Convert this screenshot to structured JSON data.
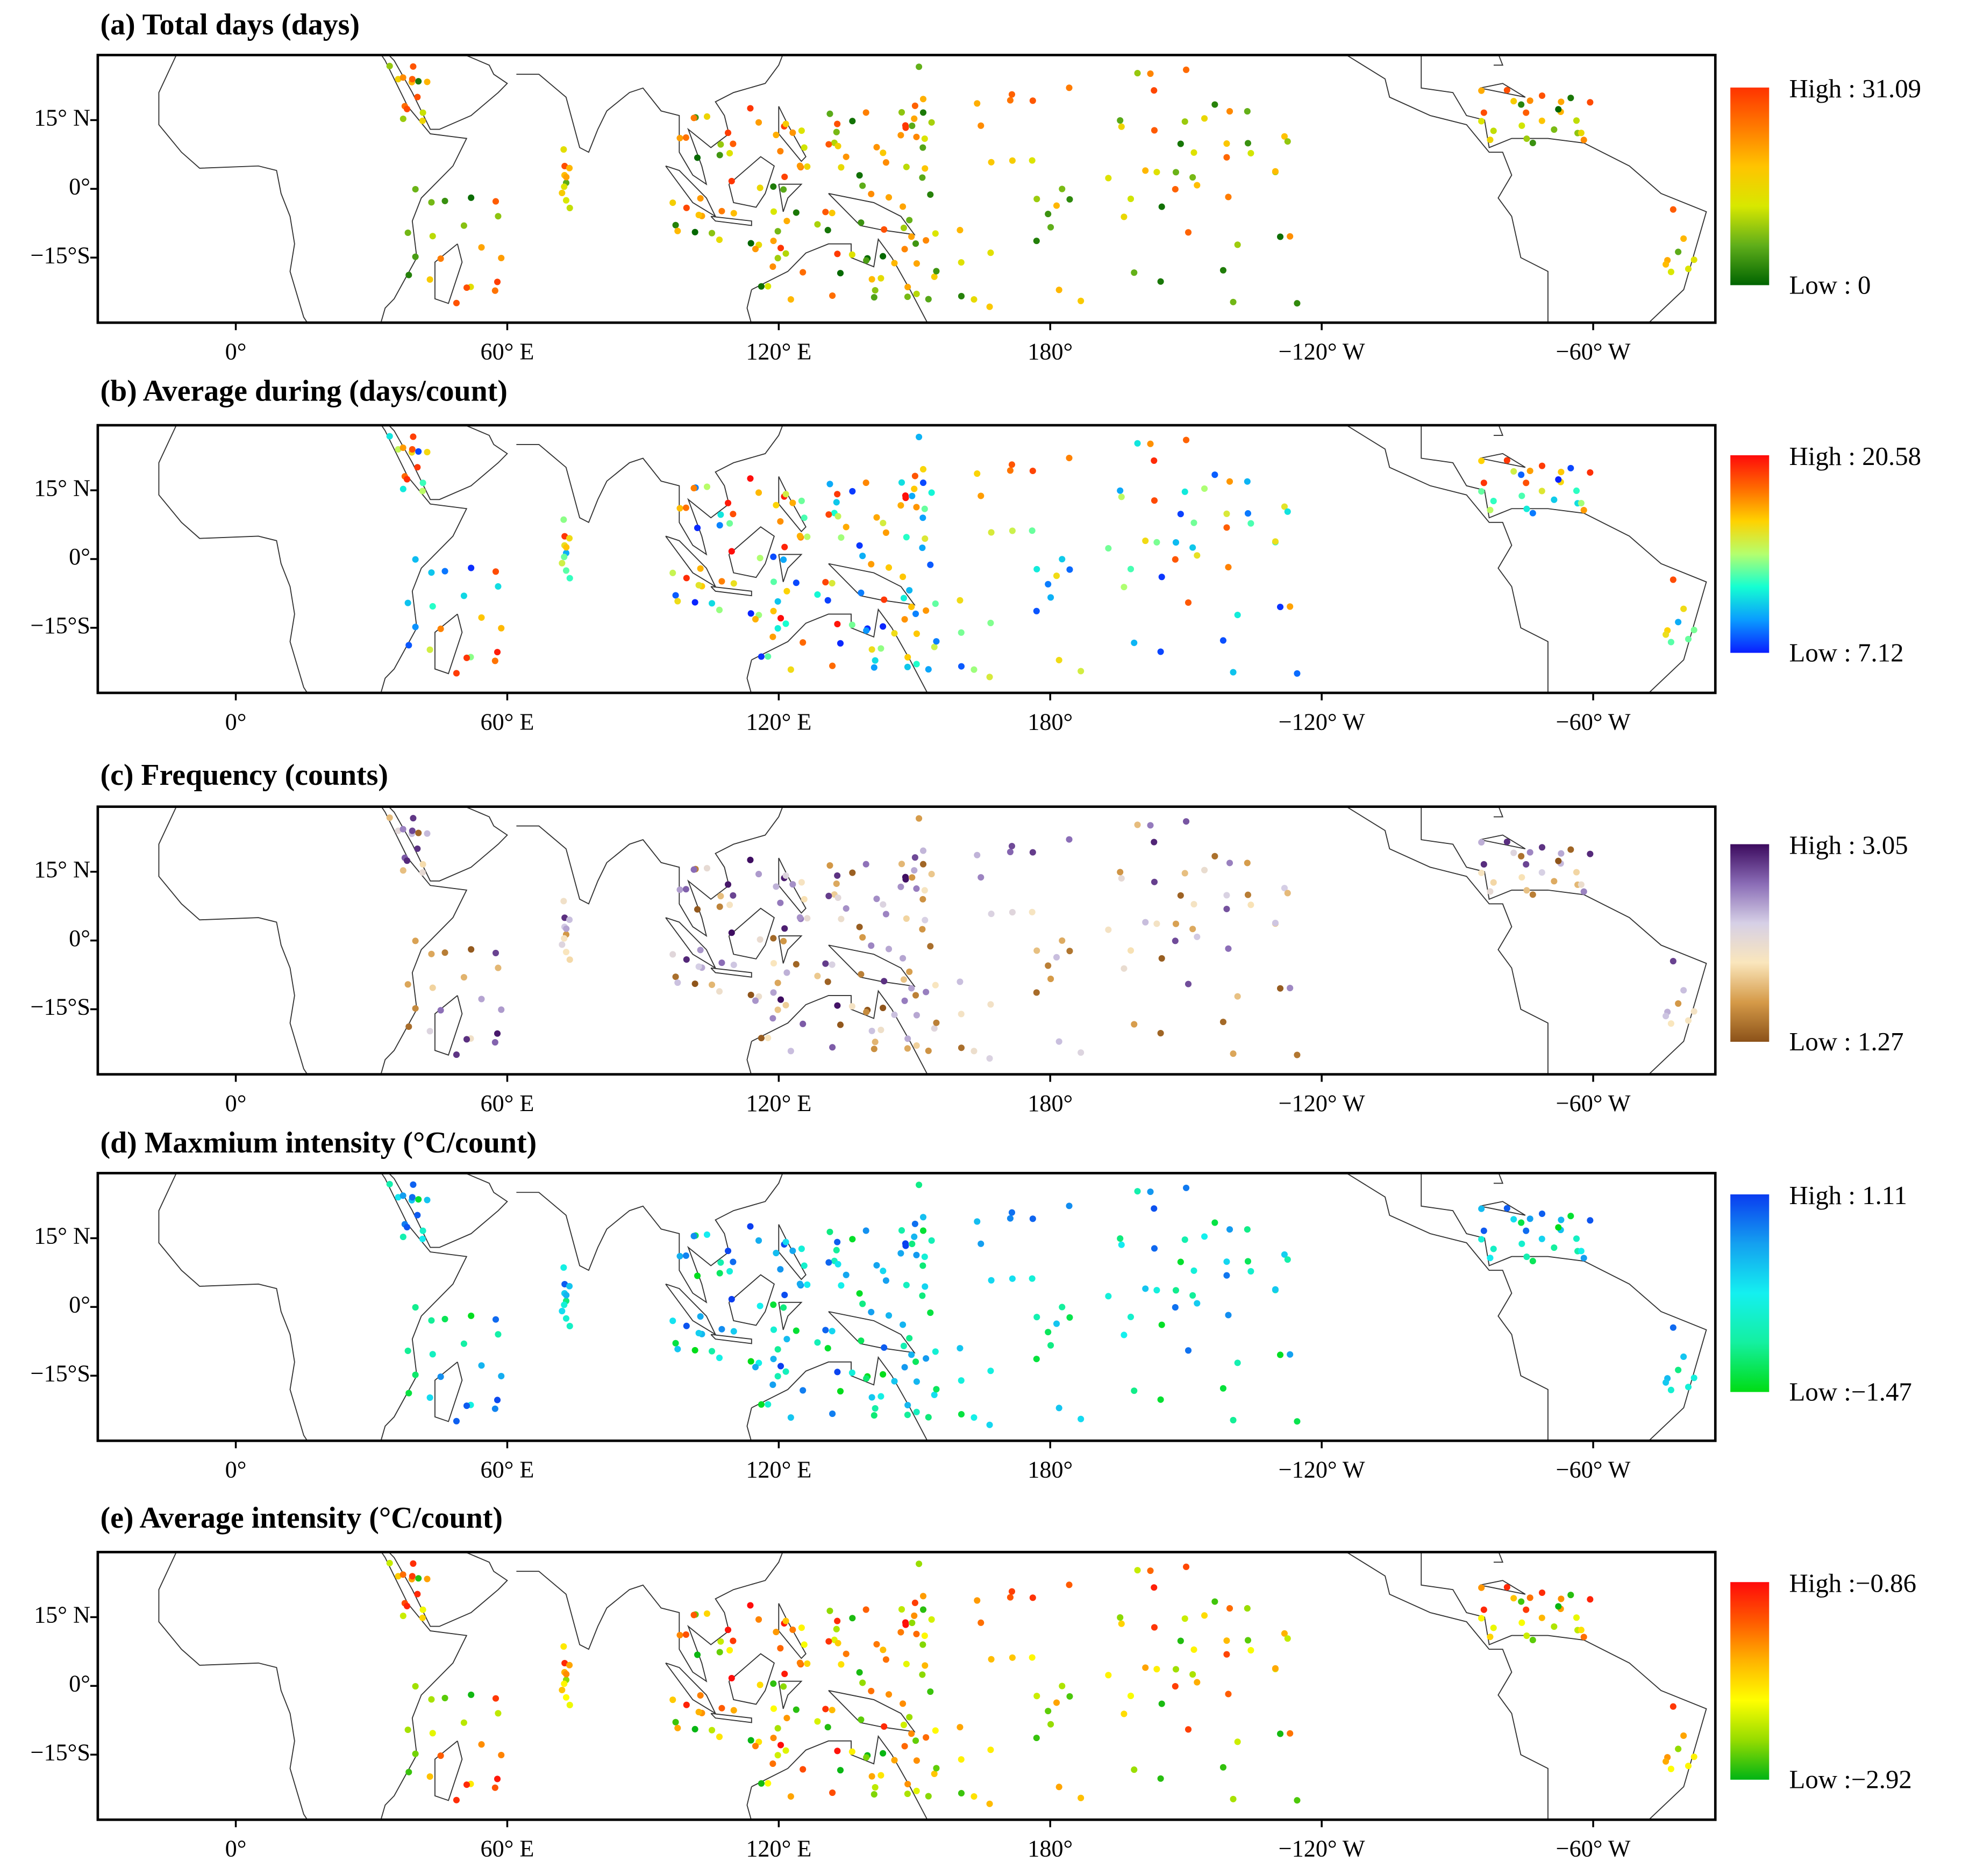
{
  "panels": [
    {
      "title": "(a) Total days (days)",
      "high_label": "High : 31.09",
      "low_label": "Low : 0",
      "colors": [
        "#006400",
        "#5fae1a",
        "#d8e800",
        "#ffc400",
        "#ff7a00",
        "#ff3300"
      ]
    },
    {
      "title": "(b) Average during (days/count)",
      "high_label": "High : 20.58",
      "low_label": "Low : 7.12",
      "colors": [
        "#0a1eff",
        "#0a9cff",
        "#14ffd2",
        "#b4ff6e",
        "#ffd200",
        "#ff6a00",
        "#ff0a0a"
      ]
    },
    {
      "title": "(c) Frequency (counts)",
      "high_label": "High : 3.05",
      "low_label": "Low : 1.27",
      "colors": [
        "#8c5219",
        "#d59a48",
        "#fae6bc",
        "#d6d0e6",
        "#8a6cb6",
        "#3c0a5e"
      ]
    },
    {
      "title": "(d) Maxmium intensity (°C/count)",
      "high_label": "High : 1.11",
      "low_label": "Low :−1.47",
      "colors": [
        "#00dc14",
        "#14f0a0",
        "#14f0f0",
        "#14a0f0",
        "#0a3cf0"
      ]
    },
    {
      "title": "(e) Average intensity (°C/count)",
      "high_label": "High :−0.86",
      "low_label": "Low :−2.92",
      "colors": [
        "#00b414",
        "#96dc00",
        "#ffff00",
        "#ffb400",
        "#ff5a00",
        "#ff0a0a"
      ]
    }
  ],
  "map": {
    "xlim": [
      -30.5,
      -33
    ],
    "ylim": [
      -29.2,
      29.2
    ],
    "xticks": [
      {
        "value": 0,
        "label": "0°"
      },
      {
        "value": 60,
        "label": "60° E"
      },
      {
        "value": 120,
        "label": "120° E"
      },
      {
        "value": 180,
        "label": "180°"
      },
      {
        "value": -120,
        "label": "−120° W"
      },
      {
        "value": -60,
        "label": "−60° W"
      }
    ],
    "yticks": [
      {
        "value": 15,
        "label": "15° N"
      },
      {
        "value": 0,
        "label": "0°"
      },
      {
        "value": -15,
        "label": "−15°S"
      }
    ]
  }
}
